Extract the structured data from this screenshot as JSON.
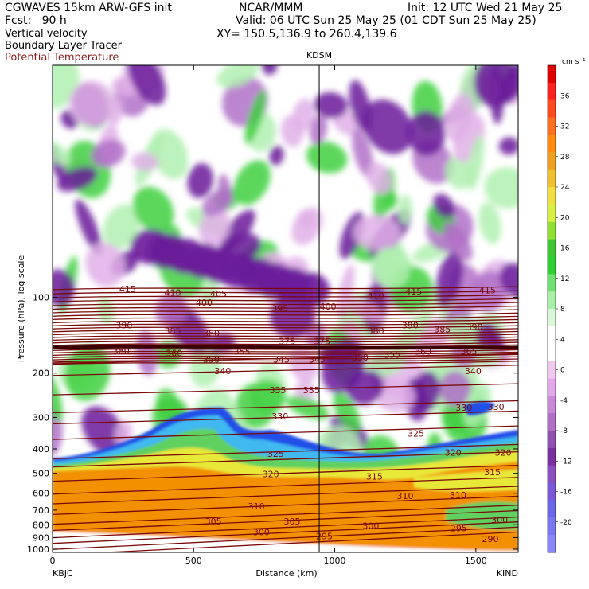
{
  "header": {
    "model": "CGWAVES 15km ARW-GFS init",
    "forecast": "Fcst:   90 h",
    "field1": "Vertical velocity",
    "field2": "Boundary Layer Tracer",
    "field3": "Potential Temperature",
    "org": "NCAR/MMM",
    "init": "Init: 12 UTC Wed 21 May 25",
    "valid": "Valid: 06 UTC Sun 25 May 25 (01 CDT Sun 25 May 25)",
    "xy": "XY= 150.5,136.9 to 260.4,139.6"
  },
  "colors": {
    "theta": "#7a0a0a",
    "strong_down": "#6a1b9a",
    "mid_down": "#b070c8",
    "weak_down": "#e0b0e8",
    "weak_up": "#b0f0b0",
    "mid_up": "#40d040",
    "tracer_orange": "#f39000",
    "tracer_yellow": "#e8e838",
    "tracer_green": "#60d060",
    "tracer_blue": "#2050e8"
  },
  "chart_data": {
    "type": "cross-section contour",
    "xlabel": "Distance (km)",
    "ylabel": "Pressure (hPa), log scale",
    "xlim": [
      0,
      1650
    ],
    "ylim": [
      1030,
      12
    ],
    "x_ticks": [
      0,
      500,
      1000,
      1500
    ],
    "y_ticks": [
      100,
      200,
      300,
      400,
      500,
      600,
      700,
      800,
      900,
      1000
    ],
    "left_station": "KBJC",
    "right_station": "KIND",
    "marker_station": "KDSM",
    "marker_x": 945,
    "colorbar": {
      "unit": "cm s⁻¹",
      "labels": [
        36,
        32,
        28,
        24,
        20,
        16,
        12,
        8,
        4,
        0,
        -4,
        -8,
        -12,
        -16,
        -20
      ],
      "colors": [
        "#e00000",
        "#ff2020",
        "#ff4a20",
        "#ff7020",
        "#ff8c10",
        "#f0a020",
        "#f0c030",
        "#f0e040",
        "#d8f040",
        "#90e030",
        "#40c830",
        "#30d030",
        "#70e070",
        "#a8f0a8",
        "#d8f8d8",
        "#ffffff",
        "#ffffff",
        "#f0c8f0",
        "#e0a8e8",
        "#c888d8",
        "#b070c8",
        "#9050b0",
        "#7a30a0",
        "#8a50c0",
        "#7858d8",
        "#6868e8",
        "#7878f0",
        "#8888f8"
      ]
    },
    "theta_labels": [
      {
        "v": "415",
        "x": 105,
        "p": 92
      },
      {
        "v": "410",
        "x": 168,
        "p": 95
      },
      {
        "v": "405",
        "x": 232,
        "p": 96
      },
      {
        "v": "400",
        "x": 385,
        "p": 108
      },
      {
        "v": "410",
        "x": 452,
        "p": 98
      },
      {
        "v": "415",
        "x": 505,
        "p": 94
      },
      {
        "v": "415",
        "x": 608,
        "p": 93
      },
      {
        "v": "400",
        "x": 212,
        "p": 104
      },
      {
        "v": "395",
        "x": 318,
        "p": 110
      },
      {
        "v": "390",
        "x": 100,
        "p": 128
      },
      {
        "v": "385",
        "x": 168,
        "p": 135
      },
      {
        "v": "380",
        "x": 222,
        "p": 138
      },
      {
        "v": "380",
        "x": 452,
        "p": 135
      },
      {
        "v": "390",
        "x": 500,
        "p": 128
      },
      {
        "v": "385",
        "x": 545,
        "p": 133
      },
      {
        "v": "390",
        "x": 590,
        "p": 130
      },
      {
        "v": "375",
        "x": 328,
        "p": 148
      },
      {
        "v": "375",
        "x": 377,
        "p": 148
      },
      {
        "v": "360",
        "x": 170,
        "p": 165
      },
      {
        "v": "380",
        "x": 96,
        "p": 162
      },
      {
        "v": "355",
        "x": 265,
        "p": 163
      },
      {
        "v": "350",
        "x": 222,
        "p": 175
      },
      {
        "v": "345",
        "x": 320,
        "p": 175
      },
      {
        "v": "345",
        "x": 370,
        "p": 175
      },
      {
        "v": "350",
        "x": 430,
        "p": 172
      },
      {
        "v": "355",
        "x": 475,
        "p": 168
      },
      {
        "v": "360",
        "x": 518,
        "p": 163
      },
      {
        "v": "365",
        "x": 582,
        "p": 163
      },
      {
        "v": "340",
        "x": 238,
        "p": 195
      },
      {
        "v": "340",
        "x": 588,
        "p": 195
      },
      {
        "v": "335",
        "x": 315,
        "p": 232
      },
      {
        "v": "335",
        "x": 362,
        "p": 232
      },
      {
        "v": "330",
        "x": 318,
        "p": 295
      },
      {
        "v": "330",
        "x": 575,
        "p": 272
      },
      {
        "v": "330",
        "x": 620,
        "p": 270
      },
      {
        "v": "325",
        "x": 508,
        "p": 345
      },
      {
        "v": "325",
        "x": 312,
        "p": 415
      },
      {
        "v": "320",
        "x": 560,
        "p": 410
      },
      {
        "v": "320",
        "x": 630,
        "p": 410
      },
      {
        "v": "320",
        "x": 305,
        "p": 500
      },
      {
        "v": "315",
        "x": 450,
        "p": 510
      },
      {
        "v": "315",
        "x": 615,
        "p": 490
      },
      {
        "v": "310",
        "x": 285,
        "p": 670
      },
      {
        "v": "310",
        "x": 493,
        "p": 610
      },
      {
        "v": "310",
        "x": 567,
        "p": 605
      },
      {
        "v": "305",
        "x": 225,
        "p": 770
      },
      {
        "v": "305",
        "x": 335,
        "p": 770
      },
      {
        "v": "300",
        "x": 292,
        "p": 850
      },
      {
        "v": "300",
        "x": 445,
        "p": 800
      },
      {
        "v": "300",
        "x": 625,
        "p": 760
      },
      {
        "v": "295",
        "x": 380,
        "p": 880
      },
      {
        "v": "295",
        "x": 568,
        "p": 820
      },
      {
        "v": "290",
        "x": 612,
        "p": 905
      }
    ]
  }
}
